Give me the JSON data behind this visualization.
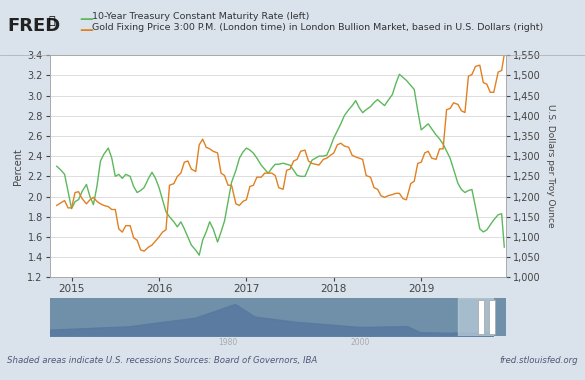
{
  "title_line1": "10-Year Treasury Constant Maturity Rate (left)",
  "title_line2": "Gold Fixing Price 3:00 P.M. (London time) in London Bullion Market, based in U.S. Dollars (right)",
  "fred_logo_text": "FRED",
  "source_text": "Sources: Board of Governors, IBA",
  "footnote_text": "Shaded areas indicate U.S. recessions",
  "website_text": "fred.stlouisfed.org",
  "bg_color": "#dae3ec",
  "plot_bg_color": "#ffffff",
  "minimap_bg_color": "#7090aa",
  "minimap_fill_color": "#5878a0",
  "minimap_highlight_color": "#b8ccd8",
  "green_color": "#5cb85c",
  "orange_color": "#e08020",
  "left_ylim": [
    1.2,
    3.4
  ],
  "right_ylim": [
    1000,
    1550
  ],
  "left_yticks": [
    1.2,
    1.4,
    1.6,
    1.8,
    2.0,
    2.2,
    2.4,
    2.6,
    2.8,
    3.0,
    3.2,
    3.4
  ],
  "right_yticks": [
    1000,
    1050,
    1100,
    1150,
    1200,
    1250,
    1300,
    1350,
    1400,
    1450,
    1500,
    1550
  ],
  "xlim_start": 2014.75,
  "xlim_end": 2019.97,
  "xtick_labels": [
    "2015",
    "2016",
    "2017",
    "2018",
    "2019"
  ],
  "xtick_positions": [
    2015,
    2016,
    2017,
    2018,
    2019
  ],
  "treasury_data": [
    [
      2014.83,
      2.3
    ],
    [
      2014.88,
      2.26
    ],
    [
      2014.92,
      2.22
    ],
    [
      2014.96,
      2.05
    ],
    [
      2015.0,
      1.88
    ],
    [
      2015.04,
      1.95
    ],
    [
      2015.08,
      1.97
    ],
    [
      2015.12,
      2.05
    ],
    [
      2015.17,
      2.12
    ],
    [
      2015.21,
      2.0
    ],
    [
      2015.25,
      1.92
    ],
    [
      2015.29,
      2.1
    ],
    [
      2015.33,
      2.35
    ],
    [
      2015.37,
      2.42
    ],
    [
      2015.42,
      2.48
    ],
    [
      2015.46,
      2.38
    ],
    [
      2015.5,
      2.2
    ],
    [
      2015.54,
      2.22
    ],
    [
      2015.58,
      2.18
    ],
    [
      2015.62,
      2.22
    ],
    [
      2015.67,
      2.2
    ],
    [
      2015.71,
      2.1
    ],
    [
      2015.75,
      2.04
    ],
    [
      2015.79,
      2.06
    ],
    [
      2015.83,
      2.09
    ],
    [
      2015.88,
      2.18
    ],
    [
      2015.92,
      2.24
    ],
    [
      2015.96,
      2.18
    ],
    [
      2016.0,
      2.09
    ],
    [
      2016.04,
      1.97
    ],
    [
      2016.08,
      1.85
    ],
    [
      2016.12,
      1.8
    ],
    [
      2016.17,
      1.75
    ],
    [
      2016.21,
      1.7
    ],
    [
      2016.25,
      1.75
    ],
    [
      2016.29,
      1.68
    ],
    [
      2016.33,
      1.6
    ],
    [
      2016.37,
      1.52
    ],
    [
      2016.42,
      1.47
    ],
    [
      2016.46,
      1.42
    ],
    [
      2016.5,
      1.57
    ],
    [
      2016.54,
      1.65
    ],
    [
      2016.58,
      1.75
    ],
    [
      2016.62,
      1.68
    ],
    [
      2016.67,
      1.55
    ],
    [
      2016.71,
      1.65
    ],
    [
      2016.75,
      1.76
    ],
    [
      2016.79,
      1.95
    ],
    [
      2016.83,
      2.14
    ],
    [
      2016.88,
      2.26
    ],
    [
      2016.92,
      2.38
    ],
    [
      2016.96,
      2.44
    ],
    [
      2017.0,
      2.48
    ],
    [
      2017.04,
      2.46
    ],
    [
      2017.08,
      2.43
    ],
    [
      2017.12,
      2.38
    ],
    [
      2017.17,
      2.31
    ],
    [
      2017.21,
      2.27
    ],
    [
      2017.25,
      2.23
    ],
    [
      2017.29,
      2.28
    ],
    [
      2017.33,
      2.32
    ],
    [
      2017.37,
      2.32
    ],
    [
      2017.42,
      2.33
    ],
    [
      2017.46,
      2.32
    ],
    [
      2017.5,
      2.31
    ],
    [
      2017.54,
      2.26
    ],
    [
      2017.58,
      2.21
    ],
    [
      2017.62,
      2.2
    ],
    [
      2017.67,
      2.2
    ],
    [
      2017.71,
      2.28
    ],
    [
      2017.75,
      2.36
    ],
    [
      2017.79,
      2.38
    ],
    [
      2017.83,
      2.4
    ],
    [
      2017.88,
      2.4
    ],
    [
      2017.92,
      2.41
    ],
    [
      2017.96,
      2.49
    ],
    [
      2018.0,
      2.58
    ],
    [
      2018.04,
      2.65
    ],
    [
      2018.08,
      2.72
    ],
    [
      2018.12,
      2.8
    ],
    [
      2018.17,
      2.86
    ],
    [
      2018.21,
      2.9
    ],
    [
      2018.25,
      2.95
    ],
    [
      2018.29,
      2.88
    ],
    [
      2018.33,
      2.83
    ],
    [
      2018.37,
      2.86
    ],
    [
      2018.42,
      2.89
    ],
    [
      2018.46,
      2.93
    ],
    [
      2018.5,
      2.96
    ],
    [
      2018.54,
      2.93
    ],
    [
      2018.58,
      2.9
    ],
    [
      2018.62,
      2.95
    ],
    [
      2018.67,
      3.01
    ],
    [
      2018.71,
      3.12
    ],
    [
      2018.75,
      3.21
    ],
    [
      2018.79,
      3.18
    ],
    [
      2018.83,
      3.15
    ],
    [
      2018.88,
      3.1
    ],
    [
      2018.92,
      3.06
    ],
    [
      2018.96,
      2.85
    ],
    [
      2019.0,
      2.66
    ],
    [
      2019.04,
      2.69
    ],
    [
      2019.08,
      2.72
    ],
    [
      2019.12,
      2.67
    ],
    [
      2019.17,
      2.61
    ],
    [
      2019.21,
      2.57
    ],
    [
      2019.25,
      2.52
    ],
    [
      2019.29,
      2.45
    ],
    [
      2019.33,
      2.38
    ],
    [
      2019.37,
      2.27
    ],
    [
      2019.42,
      2.13
    ],
    [
      2019.46,
      2.07
    ],
    [
      2019.5,
      2.04
    ],
    [
      2019.54,
      2.06
    ],
    [
      2019.58,
      2.07
    ],
    [
      2019.62,
      1.9
    ],
    [
      2019.67,
      1.68
    ],
    [
      2019.71,
      1.65
    ],
    [
      2019.75,
      1.67
    ],
    [
      2019.79,
      1.72
    ],
    [
      2019.83,
      1.77
    ],
    [
      2019.88,
      1.82
    ],
    [
      2019.92,
      1.83
    ],
    [
      2019.95,
      1.5
    ]
  ],
  "gold_data": [
    [
      2014.83,
      1178
    ],
    [
      2014.88,
      1185
    ],
    [
      2014.92,
      1190
    ],
    [
      2014.96,
      1172
    ],
    [
      2015.0,
      1172
    ],
    [
      2015.04,
      1210
    ],
    [
      2015.08,
      1212
    ],
    [
      2015.12,
      1195
    ],
    [
      2015.17,
      1182
    ],
    [
      2015.21,
      1192
    ],
    [
      2015.25,
      1198
    ],
    [
      2015.29,
      1188
    ],
    [
      2015.33,
      1182
    ],
    [
      2015.37,
      1178
    ],
    [
      2015.42,
      1175
    ],
    [
      2015.46,
      1168
    ],
    [
      2015.5,
      1168
    ],
    [
      2015.54,
      1120
    ],
    [
      2015.58,
      1112
    ],
    [
      2015.62,
      1128
    ],
    [
      2015.67,
      1128
    ],
    [
      2015.71,
      1098
    ],
    [
      2015.75,
      1092
    ],
    [
      2015.79,
      1068
    ],
    [
      2015.83,
      1065
    ],
    [
      2015.88,
      1075
    ],
    [
      2015.92,
      1080
    ],
    [
      2015.96,
      1090
    ],
    [
      2016.0,
      1100
    ],
    [
      2016.04,
      1112
    ],
    [
      2016.08,
      1118
    ],
    [
      2016.12,
      1228
    ],
    [
      2016.17,
      1232
    ],
    [
      2016.21,
      1250
    ],
    [
      2016.25,
      1258
    ],
    [
      2016.29,
      1285
    ],
    [
      2016.33,
      1288
    ],
    [
      2016.37,
      1268
    ],
    [
      2016.42,
      1262
    ],
    [
      2016.46,
      1328
    ],
    [
      2016.5,
      1342
    ],
    [
      2016.54,
      1322
    ],
    [
      2016.58,
      1318
    ],
    [
      2016.62,
      1312
    ],
    [
      2016.67,
      1308
    ],
    [
      2016.71,
      1258
    ],
    [
      2016.75,
      1252
    ],
    [
      2016.79,
      1228
    ],
    [
      2016.83,
      1228
    ],
    [
      2016.88,
      1182
    ],
    [
      2016.92,
      1178
    ],
    [
      2016.96,
      1188
    ],
    [
      2017.0,
      1192
    ],
    [
      2017.04,
      1225
    ],
    [
      2017.08,
      1228
    ],
    [
      2017.12,
      1248
    ],
    [
      2017.17,
      1248
    ],
    [
      2017.21,
      1258
    ],
    [
      2017.25,
      1258
    ],
    [
      2017.29,
      1258
    ],
    [
      2017.33,
      1252
    ],
    [
      2017.37,
      1222
    ],
    [
      2017.42,
      1218
    ],
    [
      2017.46,
      1265
    ],
    [
      2017.5,
      1268
    ],
    [
      2017.54,
      1288
    ],
    [
      2017.58,
      1292
    ],
    [
      2017.62,
      1312
    ],
    [
      2017.67,
      1315
    ],
    [
      2017.71,
      1288
    ],
    [
      2017.75,
      1282
    ],
    [
      2017.79,
      1280
    ],
    [
      2017.83,
      1278
    ],
    [
      2017.88,
      1292
    ],
    [
      2017.92,
      1295
    ],
    [
      2017.96,
      1302
    ],
    [
      2018.0,
      1308
    ],
    [
      2018.04,
      1328
    ],
    [
      2018.08,
      1332
    ],
    [
      2018.12,
      1325
    ],
    [
      2018.17,
      1322
    ],
    [
      2018.21,
      1302
    ],
    [
      2018.25,
      1298
    ],
    [
      2018.29,
      1295
    ],
    [
      2018.33,
      1292
    ],
    [
      2018.37,
      1252
    ],
    [
      2018.42,
      1248
    ],
    [
      2018.46,
      1222
    ],
    [
      2018.5,
      1218
    ],
    [
      2018.54,
      1202
    ],
    [
      2018.58,
      1198
    ],
    [
      2018.62,
      1202
    ],
    [
      2018.67,
      1205
    ],
    [
      2018.71,
      1208
    ],
    [
      2018.75,
      1208
    ],
    [
      2018.79,
      1195
    ],
    [
      2018.83,
      1192
    ],
    [
      2018.88,
      1232
    ],
    [
      2018.92,
      1238
    ],
    [
      2018.96,
      1282
    ],
    [
      2019.0,
      1285
    ],
    [
      2019.04,
      1308
    ],
    [
      2019.08,
      1312
    ],
    [
      2019.12,
      1295
    ],
    [
      2019.17,
      1292
    ],
    [
      2019.21,
      1318
    ],
    [
      2019.25,
      1318
    ],
    [
      2019.29,
      1415
    ],
    [
      2019.33,
      1418
    ],
    [
      2019.37,
      1432
    ],
    [
      2019.42,
      1428
    ],
    [
      2019.46,
      1412
    ],
    [
      2019.5,
      1408
    ],
    [
      2019.54,
      1498
    ],
    [
      2019.58,
      1502
    ],
    [
      2019.62,
      1522
    ],
    [
      2019.67,
      1525
    ],
    [
      2019.71,
      1482
    ],
    [
      2019.75,
      1478
    ],
    [
      2019.79,
      1458
    ],
    [
      2019.83,
      1458
    ],
    [
      2019.88,
      1508
    ],
    [
      2019.92,
      1512
    ],
    [
      2019.95,
      1552
    ]
  ]
}
